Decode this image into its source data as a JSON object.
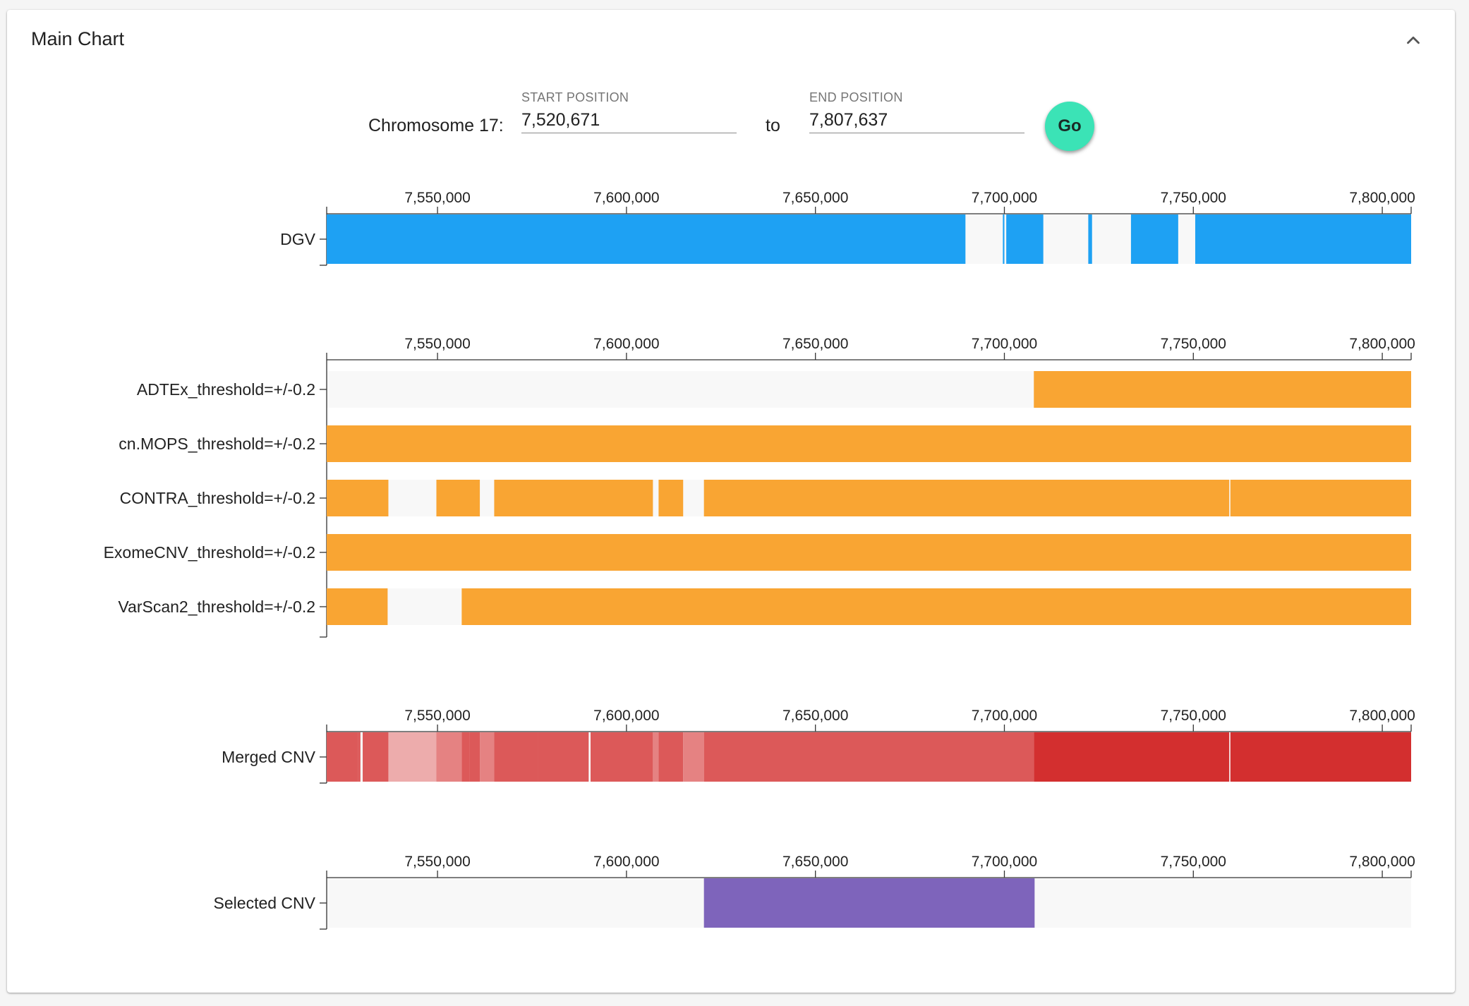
{
  "panel": {
    "title": "Main Chart",
    "collapse_icon": "chevron-up-icon"
  },
  "range": {
    "chromosome_label": "Chromosome 17:",
    "start_label": "START POSITION",
    "start_value": "7,520,671",
    "to_label": "to",
    "end_label": "END POSITION",
    "end_value": "7,807,637",
    "go_label": "Go"
  },
  "colors": {
    "dgv": "#1ea1f3",
    "caller": "#f9a533",
    "merged_base": "#d32f2f",
    "selected": "#7e64bb",
    "empty": "#f8f8f8",
    "go_button": "#3be3b6"
  },
  "chart_data": [
    {
      "type": "interval-track",
      "id": "dgv",
      "xlim": [
        7520671,
        7807637
      ],
      "ticks": [
        7550000,
        7600000,
        7650000,
        7700000,
        7750000,
        7800000
      ],
      "tick_labels": [
        "7,550,000",
        "7,600,000",
        "7,650,000",
        "7,700,000",
        "7,750,000",
        "7,800,000"
      ],
      "color": "#1ea1f3",
      "tracks": [
        {
          "label": "DGV",
          "segments": [
            [
              7520671,
              7689700
            ],
            [
              7699600,
              7700000
            ],
            [
              7700500,
              7710300
            ],
            [
              7722200,
              7723200
            ],
            [
              7733500,
              7746000
            ],
            [
              7750500,
              7807637
            ]
          ]
        }
      ]
    },
    {
      "type": "interval-track",
      "id": "callers",
      "xlim": [
        7520671,
        7807637
      ],
      "ticks": [
        7550000,
        7600000,
        7650000,
        7700000,
        7750000,
        7800000
      ],
      "tick_labels": [
        "7,550,000",
        "7,600,000",
        "7,650,000",
        "7,700,000",
        "7,750,000",
        "7,800,000"
      ],
      "color": "#f9a533",
      "tracks": [
        {
          "label": "ADTEx_threshold=+/-0.2",
          "segments": [
            [
              7707800,
              7807637
            ]
          ]
        },
        {
          "label": "cn.MOPS_threshold=+/-0.2",
          "segments": [
            [
              7520671,
              7807637
            ]
          ]
        },
        {
          "label": "CONTRA_threshold=+/-0.2",
          "segments": [
            [
              7520671,
              7537000
            ],
            [
              7549700,
              7561200
            ],
            [
              7565000,
              7607000
            ],
            [
              7608500,
              7615000
            ],
            [
              7620500,
              7759500
            ],
            [
              7759800,
              7807637
            ]
          ]
        },
        {
          "label": "ExomeCNV_threshold=+/-0.2",
          "segments": [
            [
              7520671,
              7807637
            ]
          ]
        },
        {
          "label": "VarScan2_threshold=+/-0.2",
          "segments": [
            [
              7520671,
              7536800
            ],
            [
              7556400,
              7807637
            ]
          ]
        }
      ]
    },
    {
      "type": "interval-track",
      "id": "merged",
      "xlim": [
        7520671,
        7807637
      ],
      "ticks": [
        7550000,
        7600000,
        7650000,
        7700000,
        7750000,
        7800000
      ],
      "tick_labels": [
        "7,550,000",
        "7,600,000",
        "7,650,000",
        "7,700,000",
        "7,750,000",
        "7,800,000"
      ],
      "color": "#d32f2f",
      "tracks": [
        {
          "label": "Merged CNV",
          "segments": [
            [
              7520671,
              7529000,
              0.8
            ],
            [
              7529000,
              7529600,
              0.8
            ],
            [
              7530200,
              7537000,
              0.8
            ],
            [
              7537000,
              7549700,
              0.4
            ],
            [
              7549700,
              7556400,
              0.6
            ],
            [
              7556400,
              7558400,
              0.8
            ],
            [
              7558400,
              7561200,
              0.8
            ],
            [
              7561200,
              7565000,
              0.6
            ],
            [
              7565000,
              7576500,
              0.8
            ],
            [
              7576500,
              7590000,
              0.8
            ],
            [
              7590500,
              7607000,
              0.8
            ],
            [
              7607000,
              7608500,
              0.6
            ],
            [
              7608500,
              7615000,
              0.8
            ],
            [
              7615000,
              7620500,
              0.6
            ],
            [
              7620500,
              7707800,
              0.8
            ],
            [
              7707800,
              7759500,
              1.0
            ],
            [
              7759800,
              7807637,
              1.0
            ]
          ]
        }
      ]
    },
    {
      "type": "interval-track",
      "id": "selected",
      "xlim": [
        7520671,
        7807637
      ],
      "ticks": [
        7550000,
        7600000,
        7650000,
        7700000,
        7750000,
        7800000
      ],
      "tick_labels": [
        "7,550,000",
        "7,600,000",
        "7,650,000",
        "7,700,000",
        "7,750,000",
        "7,800,000"
      ],
      "color": "#7e64bb",
      "tracks": [
        {
          "label": "Selected CNV",
          "segments": [
            [
              7620500,
              7708000
            ]
          ]
        }
      ]
    }
  ]
}
